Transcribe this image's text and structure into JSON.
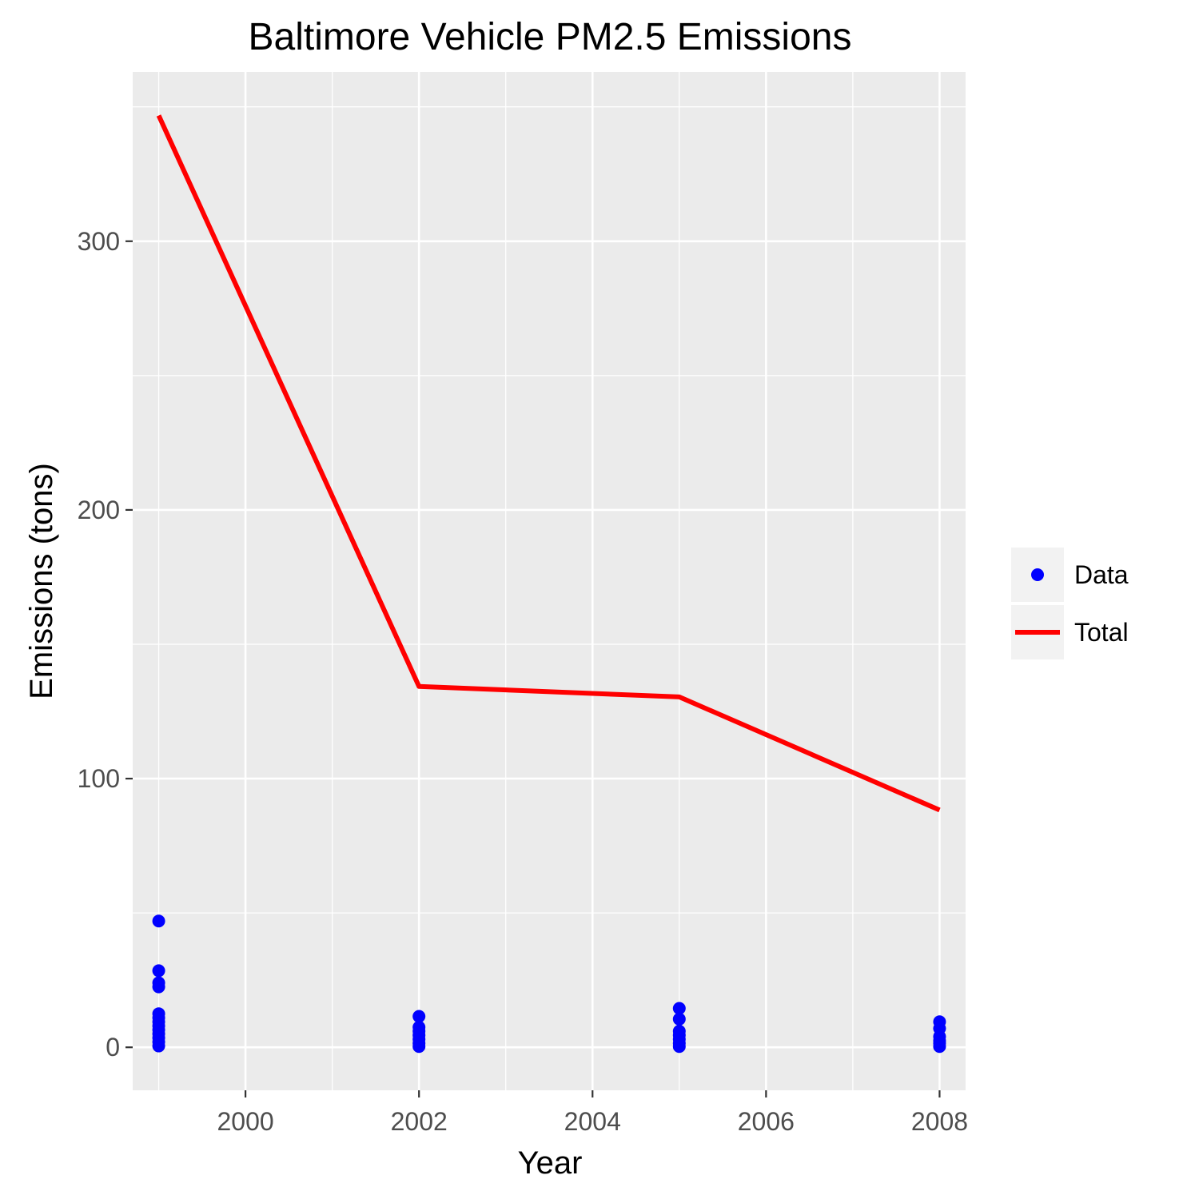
{
  "chart_data": {
    "type": "line",
    "title": "Baltimore Vehicle PM2.5 Emissions",
    "xlabel": "Year",
    "ylabel": "Emissions (tons)",
    "xlim": [
      1998.7,
      2008.3
    ],
    "ylim": [
      -16,
      363
    ],
    "x_ticks": [
      2000,
      2002,
      2004,
      2006,
      2008
    ],
    "x_tick_labels": [
      "2000",
      "2002",
      "2004",
      "2006",
      "2008"
    ],
    "y_ticks": [
      0,
      100,
      200,
      300
    ],
    "y_tick_labels": [
      "0",
      "100",
      "200",
      "300"
    ],
    "grid": true,
    "legend_position": "right",
    "series": [
      {
        "name": "Data",
        "kind": "points",
        "color": "#0000ff",
        "points": [
          [
            1999,
            47
          ],
          [
            1999,
            28.5
          ],
          [
            1999,
            24
          ],
          [
            1999,
            22.5
          ],
          [
            1999,
            12.5
          ],
          [
            1999,
            11
          ],
          [
            1999,
            9.5
          ],
          [
            1999,
            8
          ],
          [
            1999,
            6.5
          ],
          [
            1999,
            5
          ],
          [
            1999,
            3.5
          ],
          [
            1999,
            2
          ],
          [
            1999,
            0.5
          ],
          [
            2002,
            11.5
          ],
          [
            2002,
            7.5
          ],
          [
            2002,
            6
          ],
          [
            2002,
            4.5
          ],
          [
            2002,
            3
          ],
          [
            2002,
            1.5
          ],
          [
            2002,
            0.3
          ],
          [
            2005,
            14.5
          ],
          [
            2005,
            10.5
          ],
          [
            2005,
            6
          ],
          [
            2005,
            4.5
          ],
          [
            2005,
            3
          ],
          [
            2005,
            1.5
          ],
          [
            2005,
            0.3
          ],
          [
            2008,
            9.5
          ],
          [
            2008,
            7
          ],
          [
            2008,
            4
          ],
          [
            2008,
            2.5
          ],
          [
            2008,
            1.5
          ],
          [
            2008,
            0.3
          ]
        ]
      },
      {
        "name": "Total",
        "kind": "line",
        "color": "#ff0000",
        "x": [
          1999,
          2002,
          2005,
          2008
        ],
        "y": [
          346.8,
          134.3,
          130.4,
          88.3
        ]
      }
    ],
    "legend": [
      {
        "label": "Data",
        "symbol": "point",
        "color": "#0000ff"
      },
      {
        "label": "Total",
        "symbol": "line",
        "color": "#ff0000"
      }
    ]
  }
}
